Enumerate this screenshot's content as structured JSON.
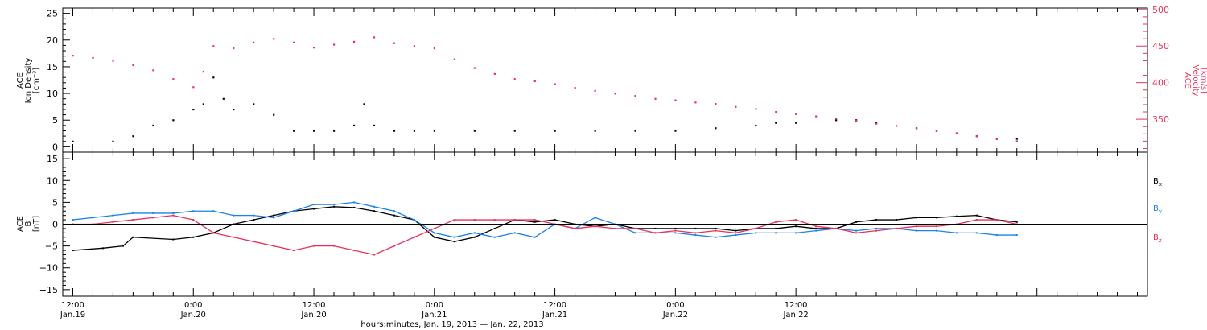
{
  "chart_data": [
    {
      "type": "scatter",
      "panel": "top",
      "ylabel_left": [
        "ACE",
        "Ion Density",
        "[cm⁻³]"
      ],
      "ylabel_right": [
        "ACE",
        "Velocity",
        "[km/s]"
      ],
      "y_left_ticks": [
        "0",
        "5",
        "10",
        "15",
        "20",
        "25"
      ],
      "y_right_ticks": [
        "350",
        "400",
        "450",
        "500"
      ],
      "ylim_left": [
        -1,
        26
      ],
      "ylim_right": [
        305,
        502
      ],
      "series": [
        {
          "axis": "left",
          "color": "#000000",
          "points": [
            [
              0,
              1
            ],
            [
              4,
              1
            ],
            [
              6,
              2
            ],
            [
              8,
              4
            ],
            [
              10,
              5
            ],
            [
              12,
              7
            ],
            [
              13,
              8
            ],
            [
              14,
              13
            ],
            [
              15,
              9
            ],
            [
              16,
              7
            ],
            [
              18,
              8
            ],
            [
              20,
              6
            ],
            [
              22,
              3
            ],
            [
              24,
              3
            ],
            [
              26,
              3
            ],
            [
              28,
              4
            ],
            [
              29,
              8
            ],
            [
              30,
              4
            ],
            [
              32,
              3
            ],
            [
              34,
              3
            ],
            [
              36,
              3
            ],
            [
              40,
              3
            ],
            [
              44,
              3
            ],
            [
              48,
              3
            ],
            [
              52,
              3
            ],
            [
              56,
              3
            ],
            [
              60,
              3
            ],
            [
              64,
              3.5
            ],
            [
              68,
              4
            ],
            [
              70,
              4.5
            ],
            [
              72,
              4.5
            ],
            [
              76,
              5
            ],
            [
              78,
              5
            ],
            [
              80,
              4.5
            ],
            [
              84,
              3.5
            ],
            [
              86,
              3
            ],
            [
              88,
              2.5
            ],
            [
              90,
              2
            ],
            [
              92,
              1.5
            ],
            [
              94,
              1.5
            ]
          ]
        },
        {
          "axis": "right",
          "color": "#e8305a",
          "points": [
            [
              0,
              437
            ],
            [
              2,
              434
            ],
            [
              4,
              430
            ],
            [
              6,
              424
            ],
            [
              8,
              417
            ],
            [
              10,
              405
            ],
            [
              12,
              394
            ],
            [
              13,
              415
            ],
            [
              14,
              450
            ],
            [
              16,
              447
            ],
            [
              18,
              455
            ],
            [
              20,
              460
            ],
            [
              22,
              455
            ],
            [
              24,
              448
            ],
            [
              26,
              452
            ],
            [
              28,
              456
            ],
            [
              30,
              462
            ],
            [
              32,
              454
            ],
            [
              34,
              450
            ],
            [
              36,
              447
            ],
            [
              38,
              432
            ],
            [
              40,
              420
            ],
            [
              42,
              412
            ],
            [
              44,
              405
            ],
            [
              46,
              402
            ],
            [
              48,
              398
            ],
            [
              50,
              393
            ],
            [
              52,
              389
            ],
            [
              54,
              385
            ],
            [
              56,
              382
            ],
            [
              58,
              378
            ],
            [
              60,
              376
            ],
            [
              62,
              373
            ],
            [
              64,
              371
            ],
            [
              66,
              367
            ],
            [
              68,
              364
            ],
            [
              70,
              360
            ],
            [
              72,
              357
            ],
            [
              74,
              354
            ],
            [
              76,
              351
            ],
            [
              78,
              348
            ],
            [
              80,
              344
            ],
            [
              82,
              341
            ],
            [
              84,
              338
            ],
            [
              86,
              334
            ],
            [
              88,
              331
            ],
            [
              90,
              327
            ],
            [
              92,
              323
            ],
            [
              94,
              320
            ]
          ]
        }
      ]
    },
    {
      "type": "line",
      "panel": "bottom",
      "ylabel": [
        "ACE",
        "B",
        "[nT]"
      ],
      "y_ticks": [
        "−15",
        "−10",
        "−5",
        "0",
        "5",
        "10",
        "15"
      ],
      "ylim": [
        -16.5,
        16.5
      ],
      "zero_line": true,
      "series": [
        {
          "name": "Bx",
          "color": "#000000",
          "points": [
            [
              0,
              -6
            ],
            [
              3,
              -5.5
            ],
            [
              5,
              -5
            ],
            [
              6,
              -3
            ],
            [
              10,
              -3.5
            ],
            [
              12,
              -3
            ],
            [
              14,
              -2
            ],
            [
              16,
              0
            ],
            [
              18,
              1
            ],
            [
              20,
              2
            ],
            [
              22,
              3
            ],
            [
              24,
              3.5
            ],
            [
              26,
              4
            ],
            [
              28,
              3.8
            ],
            [
              30,
              3
            ],
            [
              32,
              2
            ],
            [
              34,
              1
            ],
            [
              36,
              -3
            ],
            [
              38,
              -4
            ],
            [
              40,
              -3
            ],
            [
              42,
              -1
            ],
            [
              44,
              1
            ],
            [
              46,
              0.5
            ],
            [
              48,
              1
            ],
            [
              50,
              0
            ],
            [
              52,
              -0.5
            ],
            [
              54,
              0
            ],
            [
              56,
              -1
            ],
            [
              58,
              -1
            ],
            [
              60,
              -1
            ],
            [
              62,
              -1
            ],
            [
              64,
              -1
            ],
            [
              66,
              -1.5
            ],
            [
              68,
              -1
            ],
            [
              70,
              -1
            ],
            [
              72,
              -0.5
            ],
            [
              74,
              -1
            ],
            [
              76,
              -1
            ],
            [
              78,
              0.5
            ],
            [
              80,
              1
            ],
            [
              82,
              1
            ],
            [
              84,
              1.5
            ],
            [
              86,
              1.5
            ],
            [
              88,
              1.8
            ],
            [
              90,
              2
            ],
            [
              92,
              1
            ],
            [
              94,
              0.5
            ]
          ]
        },
        {
          "name": "By",
          "color": "#1a82e8",
          "points": [
            [
              0,
              1
            ],
            [
              2,
              1.5
            ],
            [
              4,
              2
            ],
            [
              6,
              2.5
            ],
            [
              8,
              2.5
            ],
            [
              10,
              2.5
            ],
            [
              12,
              3
            ],
            [
              14,
              3
            ],
            [
              16,
              2
            ],
            [
              18,
              2
            ],
            [
              20,
              1.5
            ],
            [
              22,
              3
            ],
            [
              24,
              4.5
            ],
            [
              26,
              4.5
            ],
            [
              28,
              5
            ],
            [
              30,
              4
            ],
            [
              32,
              3
            ],
            [
              34,
              1
            ],
            [
              36,
              -2
            ],
            [
              38,
              -3
            ],
            [
              40,
              -2
            ],
            [
              42,
              -3
            ],
            [
              44,
              -2
            ],
            [
              46,
              -3
            ],
            [
              48,
              0
            ],
            [
              50,
              -1
            ],
            [
              52,
              1.5
            ],
            [
              54,
              0
            ],
            [
              56,
              -2
            ],
            [
              58,
              -2
            ],
            [
              60,
              -2
            ],
            [
              62,
              -2.5
            ],
            [
              64,
              -3
            ],
            [
              66,
              -2.5
            ],
            [
              68,
              -2
            ],
            [
              70,
              -2
            ],
            [
              72,
              -2
            ],
            [
              74,
              -1.5
            ],
            [
              76,
              -1
            ],
            [
              78,
              -1.5
            ],
            [
              80,
              -1
            ],
            [
              82,
              -1
            ],
            [
              84,
              -1.5
            ],
            [
              86,
              -1.5
            ],
            [
              88,
              -2
            ],
            [
              90,
              -2
            ],
            [
              92,
              -2.5
            ],
            [
              94,
              -2.5
            ]
          ]
        },
        {
          "name": "Bz",
          "color": "#e8305a",
          "points": [
            [
              0,
              0
            ],
            [
              2,
              0
            ],
            [
              4,
              0.5
            ],
            [
              6,
              1
            ],
            [
              8,
              1.5
            ],
            [
              10,
              2
            ],
            [
              12,
              1
            ],
            [
              14,
              -2
            ],
            [
              16,
              -3
            ],
            [
              18,
              -4
            ],
            [
              20,
              -5
            ],
            [
              22,
              -6
            ],
            [
              24,
              -5
            ],
            [
              26,
              -5
            ],
            [
              28,
              -6
            ],
            [
              30,
              -7
            ],
            [
              32,
              -5
            ],
            [
              34,
              -3
            ],
            [
              36,
              -1
            ],
            [
              38,
              1
            ],
            [
              40,
              1
            ],
            [
              42,
              1
            ],
            [
              44,
              1
            ],
            [
              46,
              1
            ],
            [
              48,
              0
            ],
            [
              50,
              -1
            ],
            [
              52,
              -0.5
            ],
            [
              54,
              -1
            ],
            [
              56,
              -1
            ],
            [
              58,
              -2
            ],
            [
              60,
              -1.5
            ],
            [
              62,
              -2
            ],
            [
              64,
              -1.5
            ],
            [
              66,
              -2
            ],
            [
              68,
              -1
            ],
            [
              70,
              0.5
            ],
            [
              72,
              1
            ],
            [
              74,
              -0.5
            ],
            [
              76,
              -1
            ],
            [
              78,
              -2
            ],
            [
              80,
              -1.5
            ],
            [
              82,
              -1
            ],
            [
              84,
              -0.5
            ],
            [
              86,
              -0.5
            ],
            [
              88,
              0
            ],
            [
              90,
              1
            ],
            [
              92,
              1
            ],
            [
              94,
              0
            ]
          ]
        }
      ],
      "legend": [
        "B",
        "B",
        "B"
      ],
      "legend_subscripts": [
        "x",
        "y",
        "z"
      ]
    }
  ],
  "x_axis": {
    "tick_labels": [
      {
        "time": "12:00",
        "date": "Jan.19"
      },
      {
        "time": "0:00",
        "date": "Jan.20"
      },
      {
        "time": "12:00",
        "date": "Jan.20"
      },
      {
        "time": "0:00",
        "date": "Jan.21"
      },
      {
        "time": "12:00",
        "date": "Jan.21"
      },
      {
        "time": "0:00",
        "date": "Jan.22"
      },
      {
        "time": "12:00",
        "date": "Jan.22"
      }
    ],
    "xlabel": "hours:minutes, Jan. 19, 2013 — Jan. 22, 2013",
    "xlim_hours": [
      -1,
      107
    ]
  }
}
